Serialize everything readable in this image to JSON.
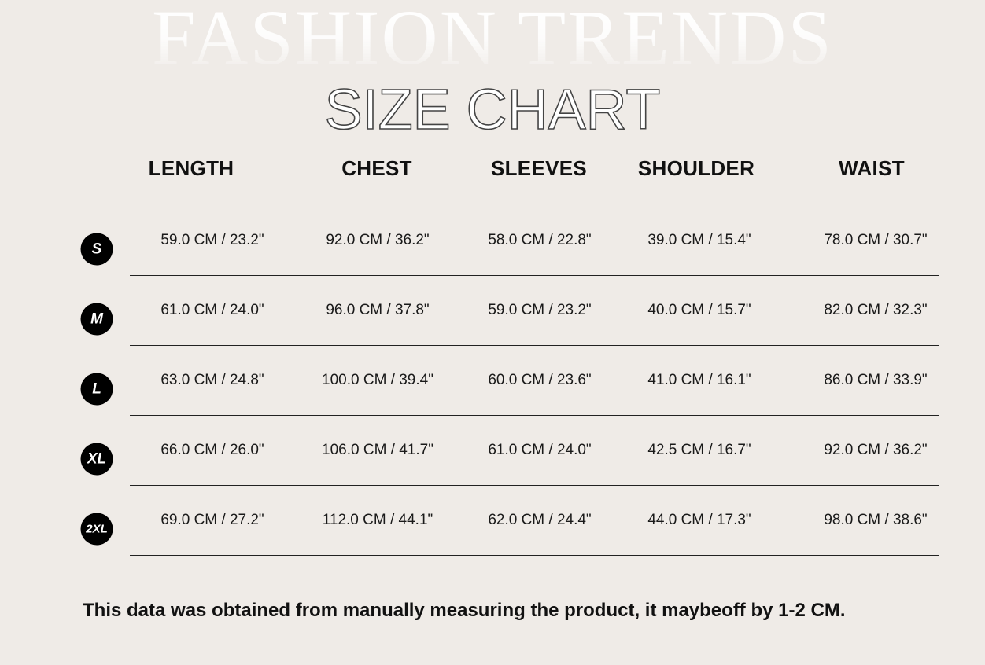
{
  "background_title": "FASHION TRENDS",
  "title": "SIZE CHART",
  "columns": [
    "LENGTH",
    "CHEST",
    "SLEEVES",
    "SHOULDER",
    "WAIST"
  ],
  "rows": [
    {
      "size": "S",
      "values": [
        "59.0  CM  /  23.2\"",
        "92.0 CM  /    36.2\"",
        "58.0 CM  /  22.8\"",
        "39.0  CM  /  15.4\"",
        "78.0 CM  /  30.7\""
      ]
    },
    {
      "size": "M",
      "values": [
        "61.0  CM  /  24.0\"",
        "96.0 CM  /    37.8\"",
        "59.0 CM  /  23.2\"",
        "40.0  CM  /  15.7\"",
        "82.0 CM  /  32.3\""
      ]
    },
    {
      "size": "L",
      "values": [
        "63.0  CM  /  24.8\"",
        "100.0 CM  /    39.4\"",
        "60.0 CM  /  23.6\"",
        "41.0  CM  /   16.1\"",
        "86.0 CM  /  33.9\""
      ]
    },
    {
      "size": "XL",
      "values": [
        "66.0  CM  /  26.0\"",
        "106.0 CM  /    41.7\"",
        "61.0 CM  /  24.0\"",
        "42.5  CM  /  16.7\"",
        "92.0 CM  /  36.2\""
      ]
    },
    {
      "size": "2XL",
      "values": [
        "69.0  CM  /  27.2\"",
        "112.0 CM  /    44.1\"",
        "62.0 CM  /  24.4\"",
        "44.0  CM  /  17.3\"",
        "98.0 CM  /  38.6\""
      ]
    }
  ],
  "note": "This data was obtained from manually measuring the product, it maybeoff by 1-2 CM.",
  "colors": {
    "background": "#efebe7",
    "badge": "#000000",
    "text": "#111111"
  }
}
